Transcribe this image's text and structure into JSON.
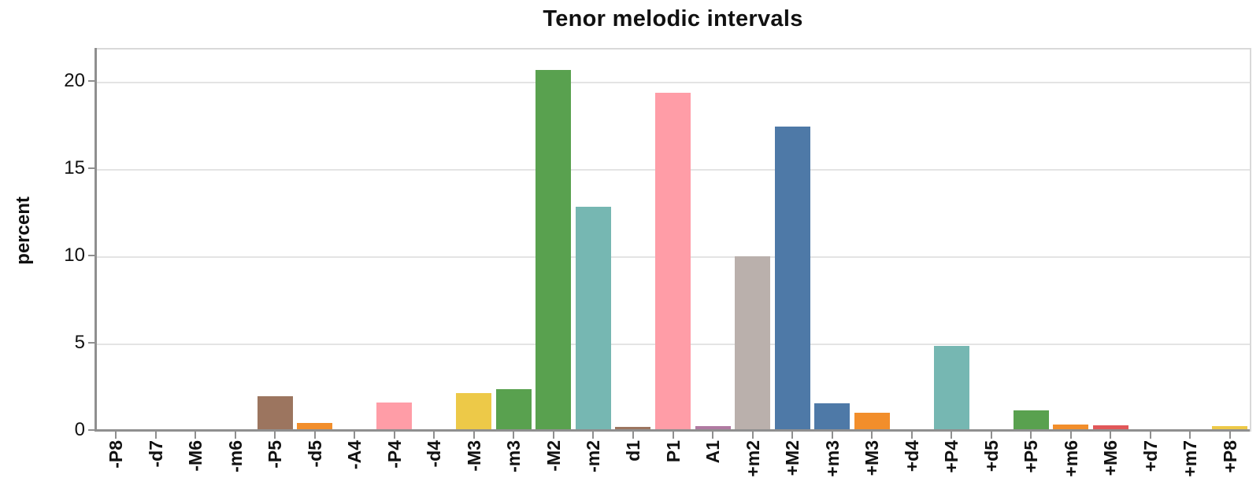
{
  "chart_data": {
    "type": "bar",
    "title": "Tenor melodic intervals",
    "ylabel": "percent",
    "xlabel": "",
    "categories": [
      "-P8",
      "-d7",
      "-M6",
      "-m6",
      "-P5",
      "-d5",
      "-A4",
      "-P4",
      "-d4",
      "-M3",
      "-m3",
      "-M2",
      "-m2",
      "d1",
      "P1",
      "A1",
      "+m2",
      "+M2",
      "+m3",
      "+M3",
      "+d4",
      "+P4",
      "+d5",
      "+P5",
      "+m6",
      "+M6",
      "+d7",
      "+m7",
      "+P8"
    ],
    "values": [
      0.15,
      0,
      0.12,
      0.1,
      2.05,
      0.5,
      0,
      1.65,
      0.08,
      2.2,
      2.45,
      20.7,
      12.9,
      0.25,
      19.4,
      0.3,
      10.05,
      17.5,
      1.6,
      1.1,
      0.12,
      4.9,
      0.1,
      1.2,
      0.4,
      0.35,
      0,
      0.05,
      0.3
    ],
    "bar_colors": [
      "#bab0ac",
      null,
      "#b07aa1",
      "#edc948",
      "#9c755f",
      "#f28e2b",
      null,
      "#ff9da7",
      "#4e79a7",
      "#edc948",
      "#59a14f",
      "#59a14f",
      "#76b7b2",
      "#9c755f",
      "#ff9da7",
      "#b07aa1",
      "#bab0ac",
      "#4e79a7",
      "#4e79a7",
      "#f28e2b",
      "#b07aa1",
      "#76b7b2",
      "#ff9da7",
      "#59a14f",
      "#f28e2b",
      "#e15759",
      null,
      "#ff9da7",
      "#edc948"
    ],
    "yticks": [
      0,
      5,
      10,
      15,
      20
    ],
    "ylim": [
      0,
      21.9
    ],
    "grid": "horizontal-only",
    "legend": "none",
    "background_color": "#ffffff",
    "gridline_color": "#e4e4e4",
    "spine_color": "#8f8f8f",
    "frame_color": "#d9d9d9",
    "text_color": "#111111"
  }
}
